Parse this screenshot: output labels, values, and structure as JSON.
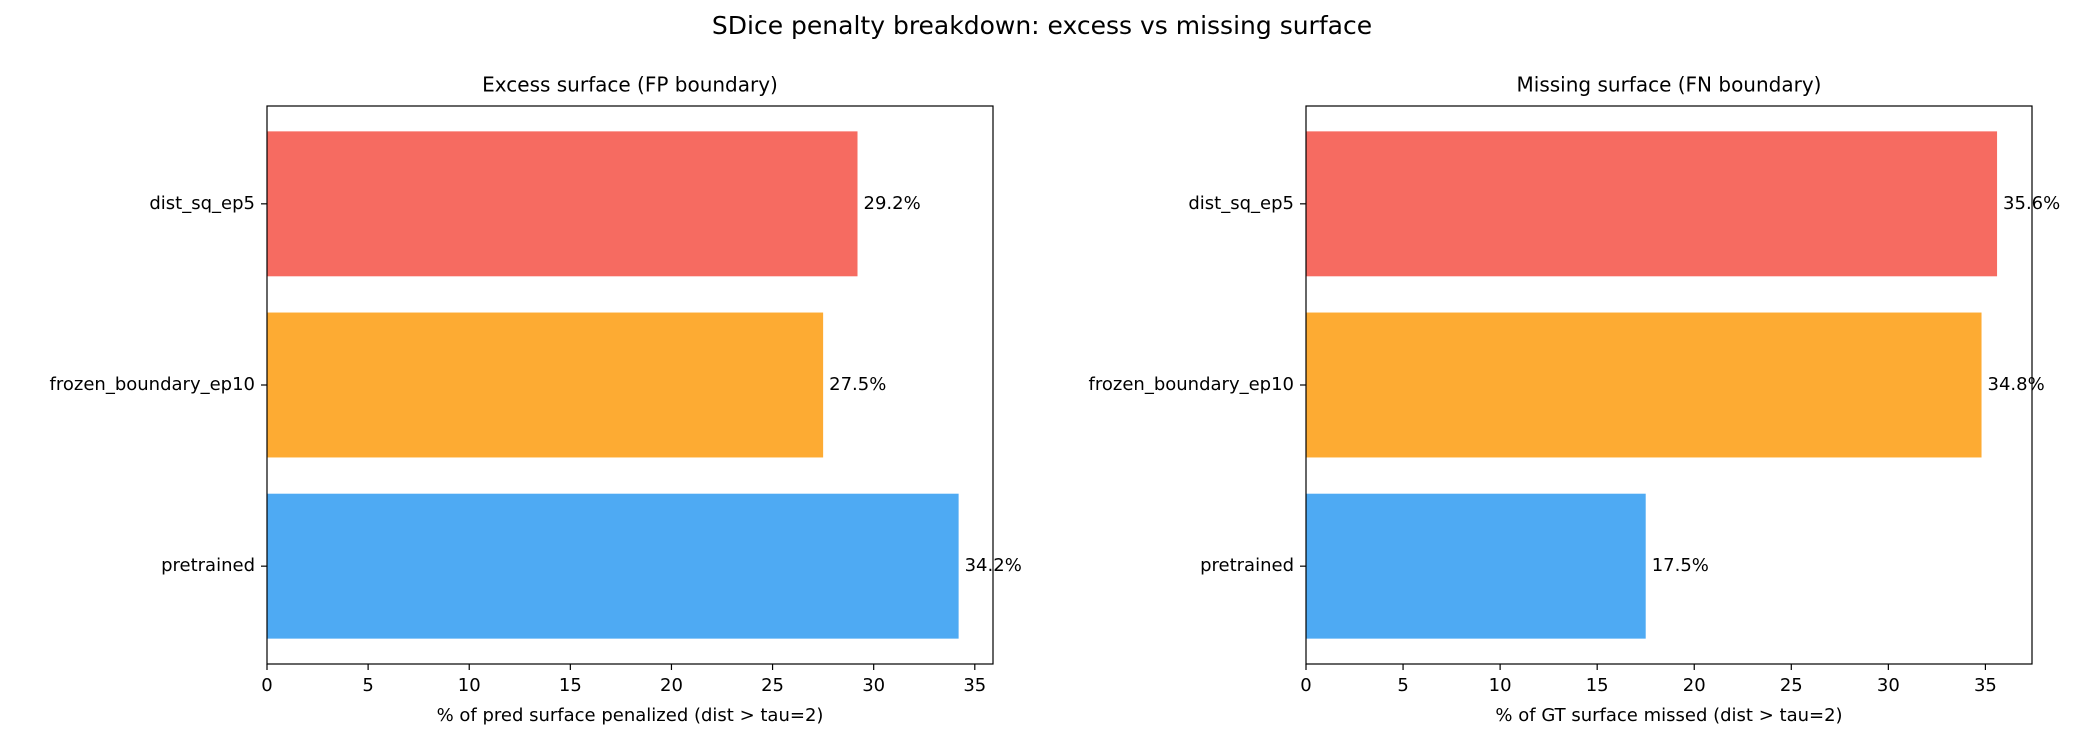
{
  "title": "SDice penalty breakdown: excess vs missing surface",
  "chart_data": [
    {
      "type": "barh",
      "title": "Excess surface (FP boundary)",
      "xlabel": "% of pred surface penalized (dist > tau=2)",
      "categories": [
        "dist_sq_ep5",
        "frozen_boundary_ep10",
        "pretrained"
      ],
      "values": [
        29.2,
        27.5,
        34.2
      ],
      "value_labels": [
        "29.2%",
        "27.5%",
        "34.2%"
      ],
      "colors": [
        "#f66b61",
        "#fdab33",
        "#4eaaf3"
      ],
      "xlim": [
        0,
        35.9
      ],
      "xticks": [
        0,
        5,
        10,
        15,
        20,
        25,
        30,
        35
      ]
    },
    {
      "type": "barh",
      "title": "Missing surface (FN boundary)",
      "xlabel": "% of GT surface missed (dist > tau=2)",
      "categories": [
        "dist_sq_ep5",
        "frozen_boundary_ep10",
        "pretrained"
      ],
      "values": [
        35.6,
        34.8,
        17.5
      ],
      "value_labels": [
        "35.6%",
        "34.8%",
        "17.5%"
      ],
      "colors": [
        "#f66b61",
        "#fdab33",
        "#4eaaf3"
      ],
      "xlim": [
        0,
        37.4
      ],
      "xticks": [
        0,
        5,
        10,
        15,
        20,
        25,
        30,
        35
      ]
    }
  ]
}
